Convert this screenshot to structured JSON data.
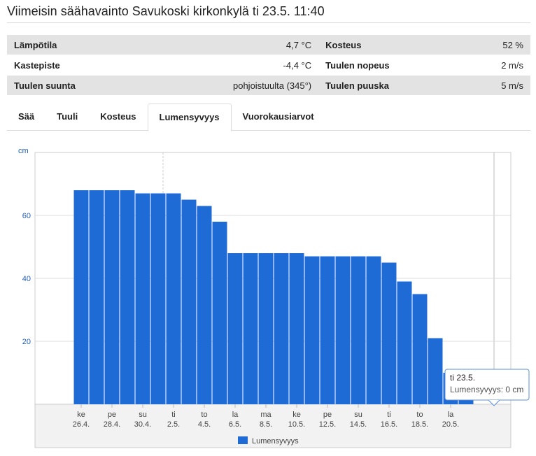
{
  "header": {
    "title": "Viimeisin säähavainto Savukoski kirkonkylä ti 23.5. 11:40"
  },
  "table": {
    "rows": [
      [
        "Lämpötila",
        "4,7 °C",
        "Kosteus",
        "52 %"
      ],
      [
        "Kastepiste",
        "-4,4 °C",
        "Tuulen nopeus",
        "2 m/s"
      ],
      [
        "Tuulen suunta",
        "pohjoistuulta (345°)",
        "Tuulen puuska",
        "5 m/s"
      ]
    ]
  },
  "tabs": {
    "items": [
      "Sää",
      "Tuuli",
      "Kosteus",
      "Lumensyvyys",
      "Vuorokausiarvot"
    ],
    "active": 3
  },
  "chart_data": {
    "type": "bar",
    "y_label": "cm",
    "categories": [
      null,
      null,
      "26.4.",
      null,
      "28.4.",
      null,
      "30.4.",
      null,
      "2.5.",
      null,
      "4.5.",
      null,
      "6.5.",
      null,
      "8.5.",
      null,
      "10.5.",
      null,
      "12.5.",
      null,
      "14.5.",
      null,
      "16.5.",
      null,
      "18.5.",
      null,
      "20.5.",
      null,
      null,
      null
    ],
    "weekdays": [
      null,
      null,
      "ke",
      null,
      "pe",
      null,
      "su",
      null,
      "ti",
      null,
      "to",
      null,
      "la",
      null,
      "ma",
      null,
      "ke",
      null,
      "pe",
      null,
      "su",
      null,
      "ti",
      null,
      "to",
      null,
      "la",
      null,
      null,
      null
    ],
    "series": [
      {
        "name": "Lumensyvyys",
        "color": "#1f6bd6",
        "values": [
          null,
          null,
          68,
          68,
          68,
          68,
          67,
          67,
          67,
          65,
          63,
          58,
          48,
          48,
          48,
          48,
          48,
          47,
          47,
          47,
          47,
          47,
          45,
          39,
          35,
          21,
          10,
          10,
          0,
          0
        ]
      }
    ],
    "ylim": [
      0,
      80
    ],
    "yticks": [
      20,
      40,
      60
    ],
    "grid": true,
    "tooltip": {
      "title": "ti 23.5.",
      "text": "Lumensyvyys: 0 cm"
    }
  }
}
